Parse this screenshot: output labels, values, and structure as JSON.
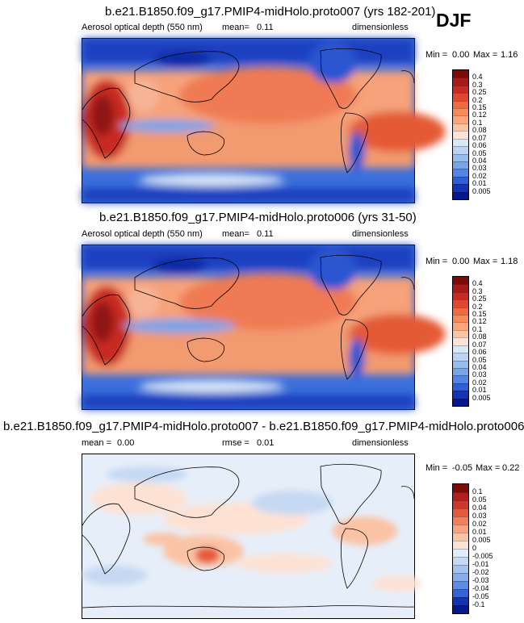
{
  "season": "DJF",
  "chart_data": [
    {
      "type": "heatmap",
      "title": "b.e21.B1850.f09_g17.PMIP4-midHolo.proto007 (yrs 182-201)",
      "variable": "Aerosol optical depth (550 nm)",
      "stat_label": "mean=",
      "stat_value": "0.11",
      "units": "dimensionless",
      "min_label": "Min =",
      "min_value": "0.00",
      "max_label": "Max =",
      "max_value": "1.16",
      "colorbar_levels": [
        "0.4",
        "0.3",
        "0.25",
        "0.2",
        "0.15",
        "0.12",
        "0.1",
        "0.08",
        "0.07",
        "0.06",
        "0.05",
        "0.04",
        "0.03",
        "0.02",
        "0.01",
        "0.005"
      ],
      "colors": [
        "#7a0a0c",
        "#a71a1a",
        "#c92a22",
        "#e0472c",
        "#ef6a3f",
        "#f68a5a",
        "#f9a77a",
        "#fbc5a3",
        "#fde3d3",
        "#dbe7f6",
        "#bcd4f1",
        "#98bdec",
        "#7aa3e8",
        "#5584e2",
        "#2f5fd7",
        "#1532b8",
        "#021a8e"
      ]
    },
    {
      "type": "heatmap",
      "title": "b.e21.B1850.f09_g17.PMIP4-midHolo.proto006 (yrs 31-50)",
      "variable": "Aerosol optical depth (550 nm)",
      "stat_label": "mean=",
      "stat_value": "0.11",
      "units": "dimensionless",
      "min_label": "Min =",
      "min_value": "0.00",
      "max_label": "Max =",
      "max_value": "1.18",
      "colorbar_levels": [
        "0.4",
        "0.3",
        "0.25",
        "0.2",
        "0.15",
        "0.12",
        "0.1",
        "0.08",
        "0.07",
        "0.06",
        "0.05",
        "0.04",
        "0.03",
        "0.02",
        "0.01",
        "0.005"
      ],
      "colors": [
        "#7a0a0c",
        "#a71a1a",
        "#c92a22",
        "#e0472c",
        "#ef6a3f",
        "#f68a5a",
        "#f9a77a",
        "#fbc5a3",
        "#fde3d3",
        "#dbe7f6",
        "#bcd4f1",
        "#98bdec",
        "#7aa3e8",
        "#5584e2",
        "#2f5fd7",
        "#1532b8",
        "#021a8e"
      ]
    },
    {
      "type": "heatmap",
      "title": "b.e21.B1850.f09_g17.PMIP4-midHolo.proto007 - b.e21.B1850.f09_g17.PMIP4-midHolo.proto006",
      "mean_label": "mean =",
      "mean_value": "0.00",
      "stat_label": "rmse =",
      "stat_value": "0.01",
      "units": "dimensionless",
      "min_label": "Min =",
      "min_value": "-0.05",
      "max_label": "Max =",
      "max_value": "0.22",
      "colorbar_levels": [
        "0.1",
        "0.05",
        "0.04",
        "0.03",
        "0.02",
        "0.01",
        "0.005",
        "0",
        "-0.005",
        "-0.01",
        "-0.02",
        "-0.03",
        "-0.04",
        "-0.05",
        "-0.1"
      ],
      "colors": [
        "#7a0a0c",
        "#b31f1d",
        "#d2352a",
        "#e65a3a",
        "#f27f58",
        "#f8a27e",
        "#fbc3a6",
        "#fde2d4",
        "#e3ecf9",
        "#c6d9f3",
        "#a5c3ee",
        "#86acea",
        "#5f8ce3",
        "#3563d8",
        "#1432b4",
        "#021a8e"
      ]
    }
  ]
}
